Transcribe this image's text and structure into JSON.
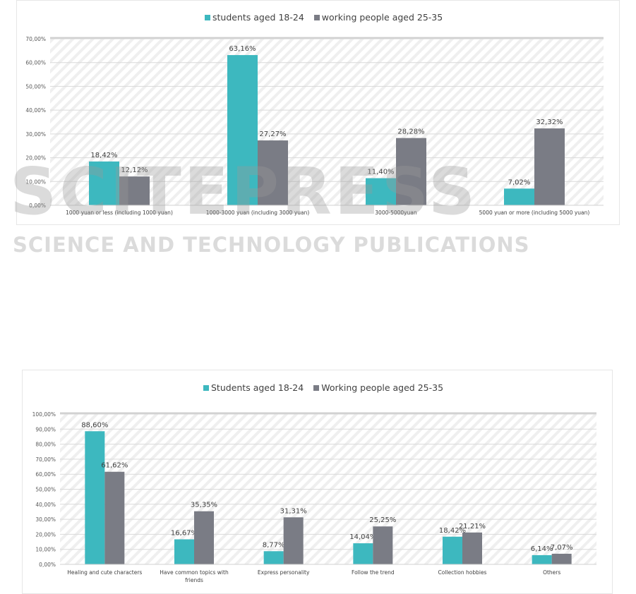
{
  "colors": {
    "students": "#3db8bf",
    "working": "#7a7c85",
    "grid": "#d9d9d9",
    "hatch": "#efefef"
  },
  "watermark": {
    "main": "SCITEPRESS",
    "sub": "SCIENCE AND TECHNOLOGY PUBLICATIONS"
  },
  "chart_data": [
    {
      "type": "bar",
      "title": "",
      "categories": [
        "1000 yuan or less (including 1000 yuan)",
        "1000-3000 yuan (including 3000 yuan)",
        "3000-5000yuan",
        "5000 yuan or more (including 5000 yuan)"
      ],
      "series": [
        {
          "name": "students aged 18-24",
          "values": [
            18.42,
            63.16,
            11.4,
            7.02
          ],
          "labels": [
            "18,42%",
            "63,16%",
            "11,40%",
            "7,02%"
          ]
        },
        {
          "name": "working people aged 25-35",
          "values": [
            12.12,
            27.27,
            28.28,
            32.32
          ],
          "labels": [
            "12,12%",
            "27,27%",
            "28,28%",
            "32,32%"
          ]
        }
      ],
      "ylim": [
        0,
        70
      ],
      "yticks": [
        "0,00%",
        "10,00%",
        "20,00%",
        "30,00%",
        "40,00%",
        "50,00%",
        "60,00%",
        "70,00%"
      ],
      "legend": "top-center",
      "grid": true
    },
    {
      "type": "bar",
      "title": "",
      "categories": [
        "Healing and cute characters",
        "Have common topics with friends",
        "Express personality",
        "Follow the trend",
        "Collection hobbies",
        "Others"
      ],
      "series": [
        {
          "name": "Students aged 18-24",
          "values": [
            88.6,
            16.67,
            8.77,
            14.04,
            18.42,
            6.14
          ],
          "labels": [
            "88,60%",
            "16,67%",
            "8,77%",
            "14,04%",
            "18,42%",
            "6,14%"
          ]
        },
        {
          "name": "Working people aged 25-35",
          "values": [
            61.62,
            35.35,
            31.31,
            25.25,
            21.21,
            7.07
          ],
          "labels": [
            "61,62%",
            "35,35%",
            "31,31%",
            "25,25%",
            "21,21%",
            "7,07%"
          ]
        }
      ],
      "ylim": [
        0,
        100
      ],
      "yticks": [
        "0,00%",
        "10,00%",
        "20,00%",
        "30,00%",
        "40,00%",
        "50,00%",
        "60,00%",
        "70,00%",
        "80,00%",
        "90,00%",
        "100,00%"
      ],
      "legend": "top-center",
      "grid": true
    }
  ]
}
